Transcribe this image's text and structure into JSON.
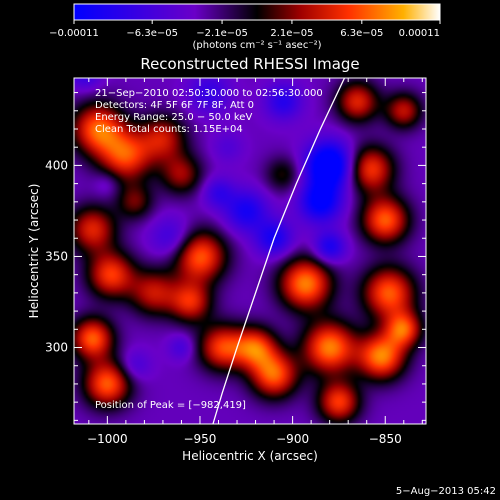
{
  "chart_data": {
    "type": "heatmap",
    "title": "Reconstructed RHESSI Image",
    "xlabel": "Heliocentric X (arcsec)",
    "ylabel": "Heliocentric Y (arcsec)",
    "xlim": [
      -1018,
      -828
    ],
    "ylim": [
      258,
      448
    ],
    "x_ticks": [
      -1000,
      -950,
      -900,
      -850
    ],
    "x_tick_labels": [
      "−1000",
      "−950",
      "−900",
      "−850"
    ],
    "y_ticks": [
      300,
      350,
      400
    ],
    "y_tick_labels": [
      "300",
      "350",
      "400"
    ],
    "colorbar": {
      "min": -0.00011,
      "max": 0.00011,
      "ticks": [
        -0.00011,
        -6.3e-05,
        -2.1e-05,
        2.1e-05,
        6.3e-05,
        0.00011
      ],
      "tick_labels": [
        "−0.00011",
        "−6.3e−05",
        "−2.1e−05",
        "2.1e−05",
        "6.3e−05",
        "0.00011"
      ],
      "units": "(photons cm⁻² s⁻¹ asec⁻²)"
    },
    "info_lines": [
      "21−Sep−2010 02:50:30.000 to 02:56:30.000",
      "Detectors: 4F 5F 6F 7F 8F, Att 0",
      "Energy Range: 25.0 − 50.0 keV",
      "Clean Total counts: 1.15E+04"
    ],
    "peak_label": "Position of Peak = [−982,419]",
    "peak": [
      -982,
      419
    ],
    "blobs": [
      [
        -1005,
        420,
        10,
        0.0001
      ],
      [
        -990,
        405,
        10,
        9e-05
      ],
      [
        -1008,
        365,
        9,
        8e-05
      ],
      [
        -998,
        340,
        9,
        9e-05
      ],
      [
        -1008,
        305,
        8,
        0.0001
      ],
      [
        -1000,
        280,
        9,
        0.0001
      ],
      [
        -975,
        330,
        9,
        7e-05
      ],
      [
        -970,
        415,
        9,
        7e-05
      ],
      [
        -960,
        395,
        8,
        6e-05
      ],
      [
        -950,
        350,
        10,
        0.0001
      ],
      [
        -955,
        325,
        8,
        8e-05
      ],
      [
        -938,
        300,
        9,
        9e-05
      ],
      [
        -920,
        300,
        8,
        9e-05
      ],
      [
        -910,
        285,
        9,
        0.0001
      ],
      [
        -893,
        335,
        10,
        0.00011
      ],
      [
        -880,
        300,
        10,
        0.00011
      ],
      [
        -875,
        270,
        8,
        9e-05
      ],
      [
        -858,
        398,
        9,
        9e-05
      ],
      [
        -850,
        370,
        9,
        0.0001
      ],
      [
        -848,
        330,
        10,
        0.0001
      ],
      [
        -852,
        295,
        9,
        0.00011
      ],
      [
        -840,
        310,
        7,
        9e-05
      ],
      [
        -865,
        435,
        8,
        8e-05
      ],
      [
        -840,
        430,
        7,
        7e-05
      ],
      [
        -985,
        380,
        7,
        5e-05
      ],
      [
        -905,
        395,
        7,
        4e-05
      ],
      [
        -880,
        400,
        9,
        -0.00011
      ],
      [
        -885,
        380,
        8,
        -8e-05
      ],
      [
        -910,
        360,
        7,
        -6e-05
      ],
      [
        -925,
        375,
        8,
        -6e-05
      ],
      [
        -965,
        360,
        8,
        -4e-05
      ],
      [
        -945,
        440,
        8,
        -4e-05
      ],
      [
        -1012,
        450,
        6,
        -4e-05
      ],
      [
        -905,
        435,
        7,
        -5e-05
      ],
      [
        -985,
        290,
        6,
        -3e-05
      ],
      [
        -940,
        385,
        6,
        -4e-05
      ],
      [
        -880,
        355,
        6,
        -6e-05
      ],
      [
        -960,
        300,
        5,
        -3e-05
      ],
      [
        -935,
        410,
        6,
        -2e-05
      ],
      [
        -1000,
        390,
        5,
        -2e-05
      ]
    ],
    "limb_curve": [
      [
        -872,
        448
      ],
      [
        -885,
        420
      ],
      [
        -898,
        390
      ],
      [
        -910,
        360
      ],
      [
        -920,
        330
      ],
      [
        -930,
        300
      ],
      [
        -938,
        275
      ],
      [
        -943,
        258
      ]
    ],
    "footer": "5−Aug−2013 05:42"
  }
}
